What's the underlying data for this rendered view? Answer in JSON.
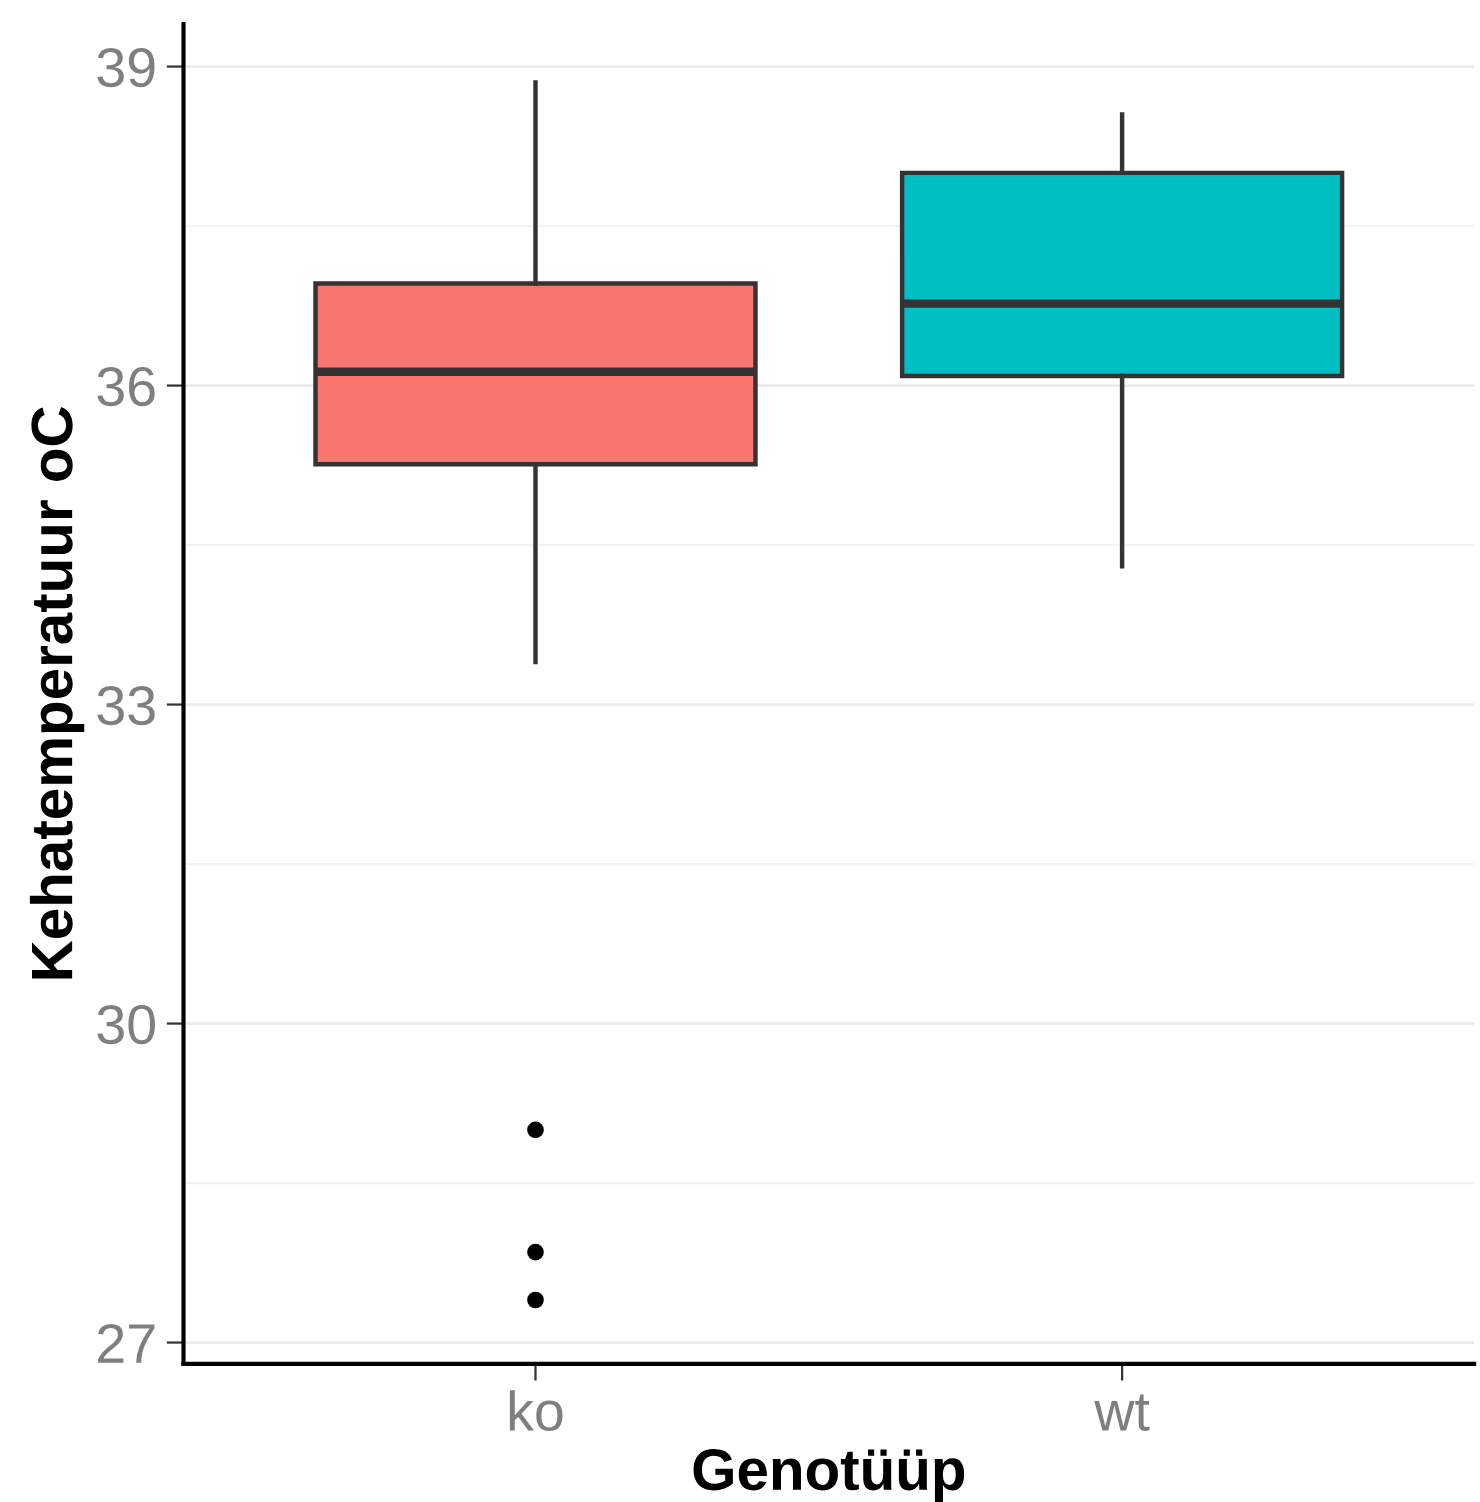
{
  "chart_data": {
    "type": "box",
    "xlabel": "Genotüüp",
    "ylabel": "Kehatemperatuur oC",
    "categories": [
      "ko",
      "wt"
    ],
    "colors": [
      "#f8766d",
      "#00bfc4"
    ],
    "boxes": [
      {
        "low": 33.4,
        "q1": 35.26,
        "median": 36.13,
        "q3": 36.96,
        "high": 38.85,
        "outliers": [
          29.0,
          27.85,
          27.4
        ]
      },
      {
        "low": 34.3,
        "q1": 36.09,
        "median": 36.77,
        "q3": 38.0,
        "high": 38.55
      }
    ],
    "ylim": [
      26.8,
      39.4
    ],
    "yticks": [
      27,
      30,
      33,
      36,
      39
    ],
    "grid": "y"
  }
}
